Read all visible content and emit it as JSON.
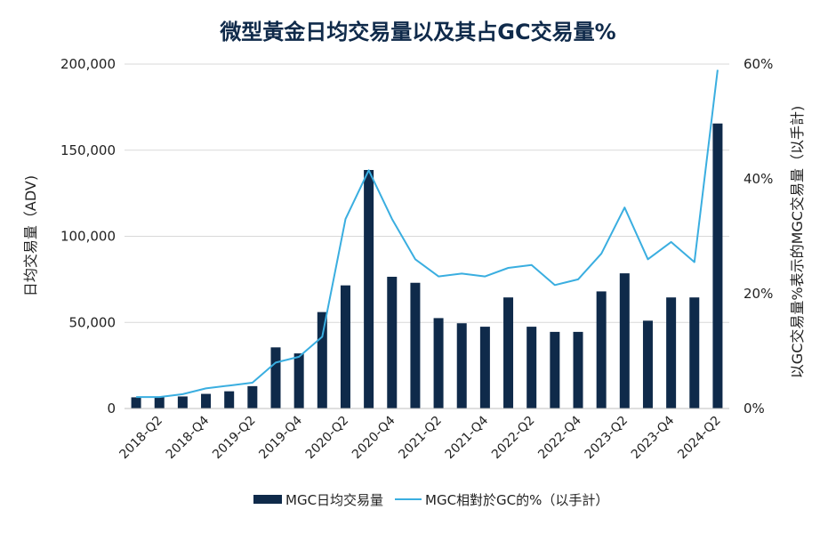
{
  "chart_data": {
    "type": "bar",
    "title": "微型黃金日均交易量以及其占GC交易量%",
    "ylabel": "日均交易量（ADV)",
    "y2label": "以GC交易量%表示的MGC交易量（以手計)",
    "ylim": [
      0,
      200000
    ],
    "y2lim": [
      0,
      60
    ],
    "yticks": [
      "0",
      "50,000",
      "100,000",
      "150,000",
      "200,000"
    ],
    "y2ticks": [
      "0%",
      "20%",
      "40%",
      "60%"
    ],
    "categories": [
      "2018-Q1",
      "2018-Q2",
      "2018-Q3",
      "2018-Q4",
      "2019-Q1",
      "2019-Q2",
      "2019-Q3",
      "2019-Q4",
      "2020-Q1",
      "2020-Q2",
      "2020-Q3",
      "2020-Q4",
      "2021-Q1",
      "2021-Q2",
      "2021-Q3",
      "2021-Q4",
      "2022-Q1",
      "2022-Q2",
      "2022-Q3",
      "2022-Q4",
      "2023-Q1",
      "2023-Q2",
      "2023-Q3",
      "2023-Q4",
      "2024-Q1",
      "2024-Q2"
    ],
    "xtick_labels": [
      "2018-Q2",
      "2018-Q4",
      "2019-Q2",
      "2019-Q4",
      "2020-Q2",
      "2020-Q4",
      "2021-Q2",
      "2021-Q4",
      "2022-Q2",
      "2022-Q4",
      "2023-Q2",
      "2023-Q4",
      "2024-Q2"
    ],
    "series": [
      {
        "name": "MGC日均交易量",
        "type": "bar",
        "axis": "left",
        "color": "#0f2a4a",
        "values": [
          6500,
          6500,
          7000,
          8500,
          10000,
          13000,
          35500,
          32000,
          56000,
          71500,
          138500,
          76500,
          73000,
          52500,
          49500,
          47500,
          64500,
          47500,
          44500,
          44500,
          68000,
          78500,
          51000,
          64500,
          64500,
          165500
        ]
      },
      {
        "name": "MGC相對於GC的%（以手計）",
        "type": "line",
        "axis": "right",
        "color": "#3aaee0",
        "values": [
          2.0,
          2.0,
          2.5,
          3.5,
          4.0,
          4.5,
          8.0,
          9.0,
          12.5,
          33.0,
          41.5,
          33.0,
          26.0,
          23.0,
          23.5,
          23.0,
          24.5,
          25.0,
          21.5,
          22.5,
          27.0,
          35.0,
          26.0,
          29.0,
          25.5,
          59.0
        ]
      }
    ],
    "legend_position": "bottom",
    "grid": true
  }
}
